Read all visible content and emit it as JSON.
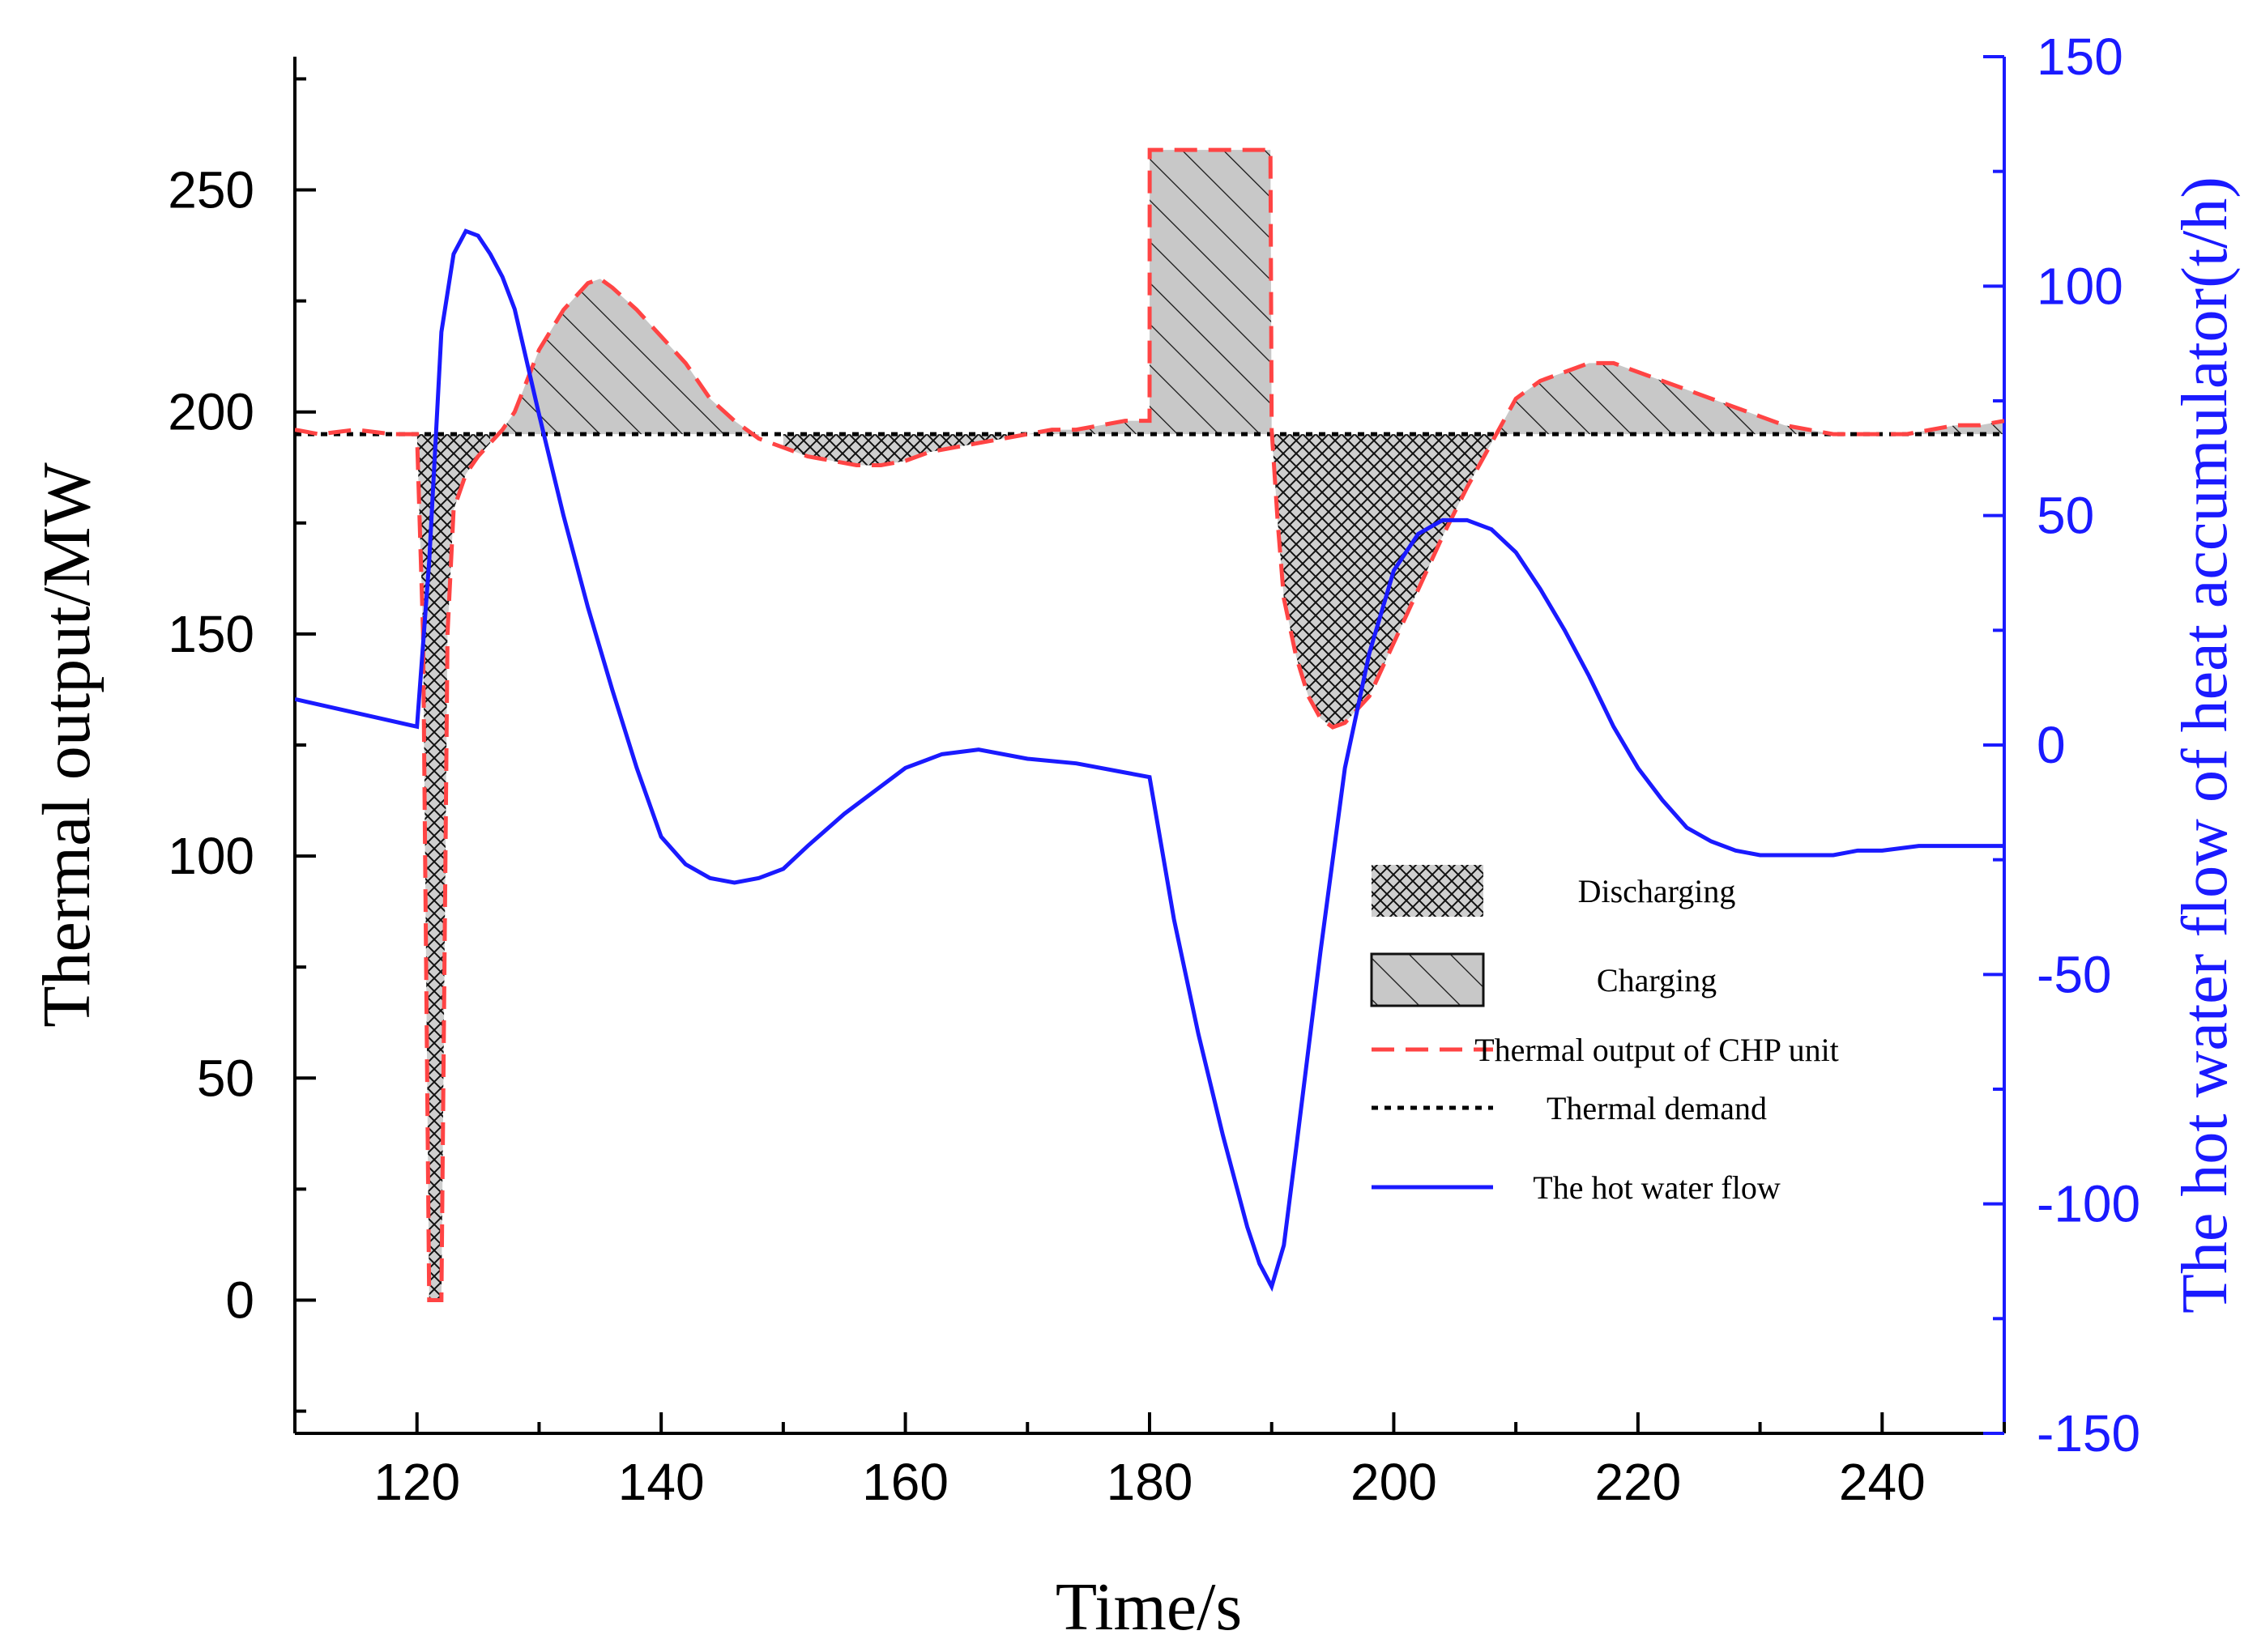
{
  "chart_data": {
    "type": "line",
    "title": "",
    "xlabel": "Time/s",
    "ylabel_left": "Thermal output/MW",
    "ylabel_right": "The hot water flow of heat accumulator(t/h)",
    "xlim": [
      110,
      250
    ],
    "ylim_left": [
      -30,
      280
    ],
    "ylim_right": [
      -150,
      150
    ],
    "x_ticks": [
      120,
      140,
      160,
      180,
      200,
      220,
      240
    ],
    "y_left_ticks": [
      0,
      50,
      100,
      150,
      200,
      250
    ],
    "y_right_ticks": [
      -150,
      -100,
      -50,
      0,
      50,
      100,
      150
    ],
    "colors": {
      "chp": "#ff4444",
      "demand": "#000000",
      "flow": "#1a1aff",
      "fill": "#c8c8c8"
    },
    "series": [
      {
        "name": "Thermal output of CHP unit",
        "axis": "left",
        "style": "dashed",
        "x": [
          110,
          112,
          115,
          118,
          120,
          120.5,
          121,
          121.5,
          122,
          122.5,
          123,
          124,
          125,
          126,
          127,
          128,
          130,
          132,
          134,
          135,
          136,
          138,
          140,
          142,
          144,
          146,
          148,
          150,
          152,
          154,
          156,
          158,
          160,
          162,
          164,
          166,
          168,
          170,
          172,
          174,
          176,
          178,
          180,
          180.01,
          182,
          186,
          189.9,
          190,
          190.5,
          191,
          192,
          193,
          194,
          195,
          196,
          198,
          200,
          202,
          204,
          206,
          208,
          210,
          212,
          214,
          216,
          218,
          220,
          222,
          224,
          226,
          228,
          230,
          232,
          234,
          236,
          238,
          240,
          242,
          244,
          246,
          248,
          250
        ],
        "values": [
          196,
          195,
          196,
          195,
          195,
          150,
          0,
          0,
          0,
          150,
          178,
          186,
          190,
          193,
          196,
          200,
          214,
          223,
          229,
          230,
          228,
          223,
          217,
          211,
          203,
          198,
          194,
          192,
          190,
          189,
          188,
          188,
          189,
          191,
          192,
          193,
          194,
          195,
          196,
          196,
          197,
          198,
          198,
          259,
          259,
          259,
          259,
          196,
          175,
          158,
          145,
          136,
          131,
          129,
          130,
          136,
          148,
          160,
          172,
          183,
          193,
          203,
          207,
          209,
          211,
          211,
          209,
          207,
          205,
          203,
          201,
          199,
          197,
          196,
          195,
          195,
          195,
          195,
          196,
          197,
          197,
          198
        ]
      },
      {
        "name": "Thermal demand",
        "axis": "left",
        "style": "dotted",
        "x": [
          110,
          250
        ],
        "values": [
          195,
          195
        ]
      },
      {
        "name": "The hot water flow",
        "axis": "right",
        "style": "solid",
        "x": [
          110,
          120,
          121,
          122,
          123,
          124,
          125,
          126,
          127,
          128,
          130,
          132,
          134,
          136,
          138,
          140,
          142,
          144,
          146,
          148,
          150,
          152,
          155,
          158,
          160,
          163,
          166,
          170,
          174,
          178,
          180,
          182,
          184,
          186,
          188,
          189,
          190,
          191,
          192,
          194,
          196,
          198,
          200,
          202,
          204,
          206,
          208,
          210,
          212,
          214,
          216,
          218,
          220,
          222,
          224,
          226,
          228,
          230,
          232,
          234,
          236,
          238,
          240,
          243,
          246,
          250
        ],
        "values": [
          10,
          4,
          40,
          90,
          107,
          112,
          111,
          107,
          102,
          95,
          72,
          50,
          30,
          12,
          -5,
          -20,
          -26,
          -29,
          -30,
          -29,
          -27,
          -22,
          -15,
          -9,
          -5,
          -2,
          -1,
          -3,
          -4,
          -6,
          -7,
          -38,
          -63,
          -85,
          -105,
          -113,
          -118,
          -109,
          -88,
          -45,
          -5,
          20,
          38,
          46,
          49,
          49,
          47,
          42,
          34,
          25,
          15,
          4,
          -5,
          -12,
          -18,
          -21,
          -23,
          -24,
          -24,
          -24,
          -24,
          -23,
          -23,
          -22,
          -22,
          -22
        ]
      }
    ],
    "shaded_regions": [
      {
        "name": "Discharging",
        "x_range": [
          120,
          126
        ]
      },
      {
        "name": "Charging",
        "x_range": [
          126,
          149
        ]
      },
      {
        "name": "Discharging",
        "x_range": [
          149,
          170
        ]
      },
      {
        "name": "Charging",
        "x_range": [
          170,
          190
        ]
      },
      {
        "name": "Discharging",
        "x_range": [
          190,
          208
        ]
      },
      {
        "name": "Charging",
        "x_range": [
          208,
          250
        ]
      }
    ],
    "legend": {
      "position": "lower-right",
      "entries": [
        {
          "label": "Discharging",
          "kind": "crosshatch"
        },
        {
          "label": "Charging",
          "kind": "hatch"
        },
        {
          "label": "Thermal output of CHP unit",
          "kind": "dashed-red"
        },
        {
          "label": "Thermal demand",
          "kind": "dotted-black"
        },
        {
          "label": "The hot water flow",
          "kind": "solid-blue"
        }
      ]
    }
  }
}
